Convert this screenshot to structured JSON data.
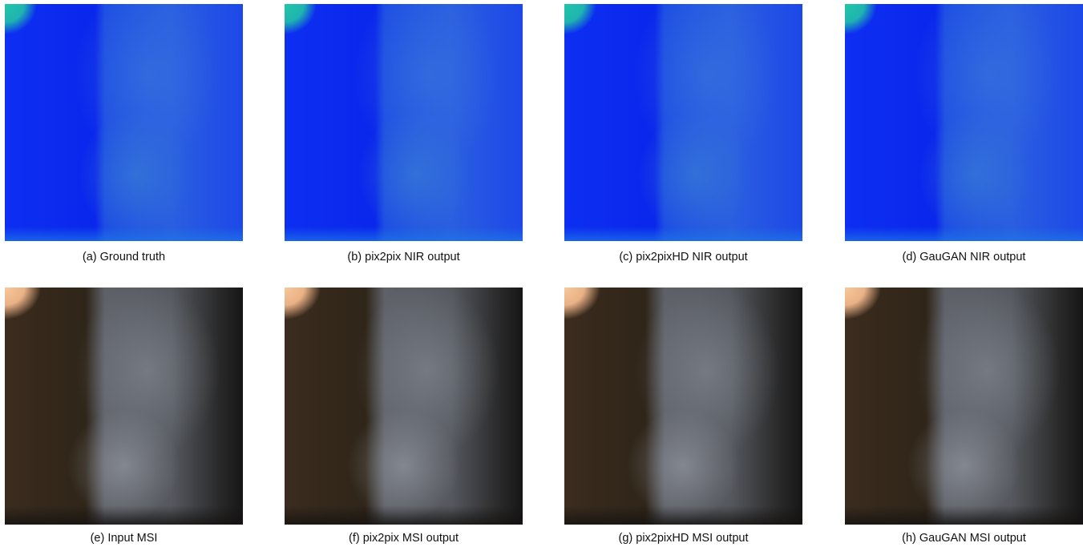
{
  "figure": {
    "panels": [
      {
        "caption": "(a) Ground truth"
      },
      {
        "caption": "(b) pix2pix NIR output"
      },
      {
        "caption": "(c) pix2pixHD NIR output"
      },
      {
        "caption": "(d) GauGAN NIR output"
      },
      {
        "caption": "(e) Input MSI"
      },
      {
        "caption": "(f) pix2pix MSI output"
      },
      {
        "caption": "(g) pix2pixHD MSI output"
      },
      {
        "caption": "(h) GauGAN MSI output"
      }
    ]
  }
}
